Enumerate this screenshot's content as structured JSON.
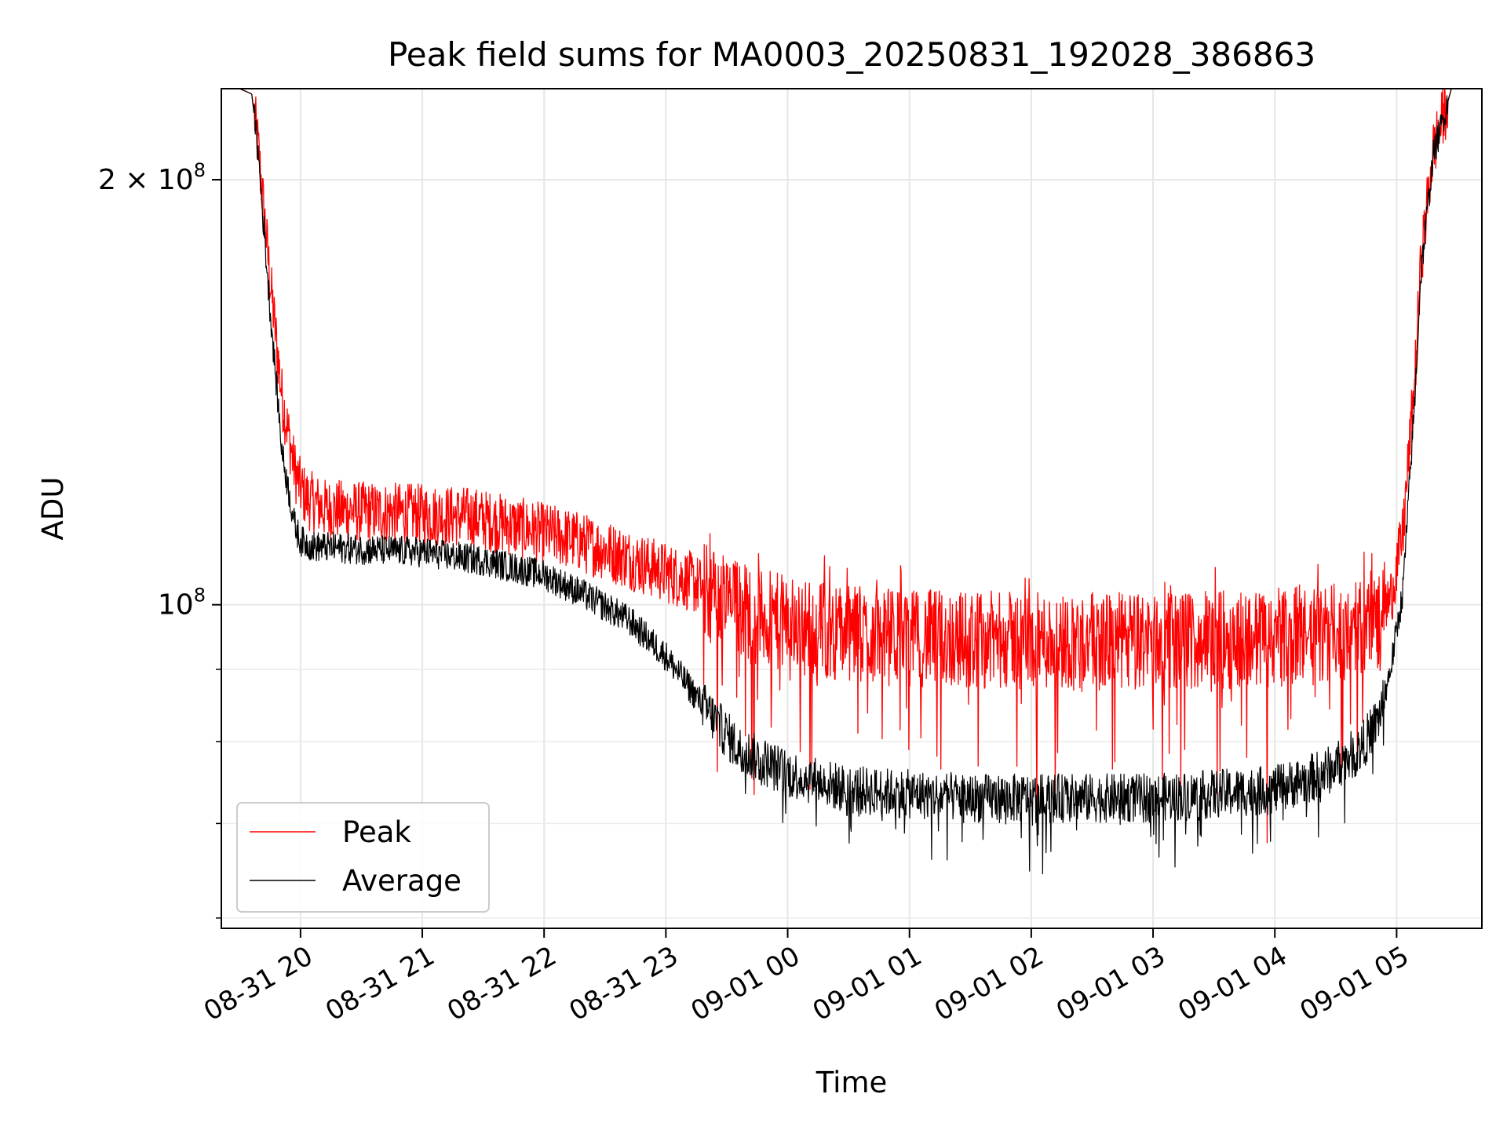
{
  "chart_data": {
    "type": "line",
    "title": "Peak field sums for MA0003_20250831_192028_386863",
    "xlabel": "Time",
    "ylabel": "ADU",
    "yscale": "log",
    "ylim": [
      59000000,
      232000000
    ],
    "xlim_hours": [
      19.35,
      29.7
    ],
    "grid": true,
    "legend_position": "lower-left",
    "x_ticks": [
      {
        "hour": 20,
        "label": "08-31 20"
      },
      {
        "hour": 21,
        "label": "08-31 21"
      },
      {
        "hour": 22,
        "label": "08-31 22"
      },
      {
        "hour": 23,
        "label": "08-31 23"
      },
      {
        "hour": 24,
        "label": "09-01 00"
      },
      {
        "hour": 25,
        "label": "09-01 01"
      },
      {
        "hour": 26,
        "label": "09-01 02"
      },
      {
        "hour": 27,
        "label": "09-01 03"
      },
      {
        "hour": 28,
        "label": "09-01 04"
      },
      {
        "hour": 29,
        "label": "09-01 05"
      }
    ],
    "y_major_ticks": [
      {
        "value": 100000000,
        "base": "10",
        "exp": "8",
        "mantissa": ""
      },
      {
        "value": 200000000,
        "base": "10",
        "exp": "8",
        "mantissa": "2"
      }
    ],
    "y_minor_ticks": [
      60000000,
      70000000,
      80000000,
      90000000
    ],
    "series": [
      {
        "name": "Peak",
        "color": "#ff0000",
        "noise_amplitude": 0.05,
        "x": [
          19.35,
          19.5,
          19.6,
          19.65,
          19.75,
          19.85,
          19.95,
          20.0,
          20.05,
          20.2,
          20.5,
          21.0,
          21.4,
          21.8,
          22.2,
          22.5,
          22.8,
          23.2,
          23.5,
          23.8,
          24.2,
          24.6,
          25.0,
          25.5,
          26.0,
          26.5,
          27.0,
          27.5,
          28.0,
          28.4,
          28.7,
          28.85,
          28.95,
          29.05,
          29.15,
          29.2,
          29.3,
          29.45,
          29.7
        ],
        "y": [
          232000000,
          232000000,
          230000000,
          212000000,
          170000000,
          140000000,
          125000000,
          121000000,
          119000000,
          117000000,
          116500000,
          116000000,
          115500000,
          113500000,
          111500000,
          109500000,
          107000000,
          104000000,
          100500000,
          98000000,
          96500000,
          95500000,
          95000000,
          94800000,
          94500000,
          94500000,
          94500000,
          94700000,
          95000000,
          95500000,
          96500000,
          98000000,
          101000000,
          112000000,
          145000000,
          175000000,
          210000000,
          232000000,
          232000000
        ]
      },
      {
        "name": "Average",
        "color": "#000000",
        "noise_amplitude": 0.025,
        "x": [
          19.35,
          19.5,
          19.6,
          19.65,
          19.75,
          19.85,
          19.95,
          20.0,
          20.1,
          20.5,
          21.0,
          21.5,
          22.0,
          22.3,
          22.7,
          23.0,
          23.3,
          23.6,
          24.0,
          24.5,
          25.0,
          25.5,
          26.0,
          26.5,
          27.0,
          27.5,
          28.0,
          28.4,
          28.7,
          28.85,
          28.95,
          29.05,
          29.15,
          29.2,
          29.3,
          29.45,
          29.7
        ],
        "y": [
          232000000,
          232000000,
          230000000,
          210000000,
          162000000,
          128000000,
          114000000,
          111000000,
          110000000,
          109500000,
          109000000,
          107500000,
          105000000,
          102000000,
          97500000,
          92000000,
          85000000,
          79000000,
          76000000,
          74000000,
          73500000,
          73000000,
          73000000,
          73000000,
          73000000,
          73500000,
          74000000,
          76000000,
          79000000,
          83000000,
          90000000,
          102000000,
          140000000,
          172000000,
          208000000,
          232000000,
          232000000
        ]
      }
    ]
  }
}
